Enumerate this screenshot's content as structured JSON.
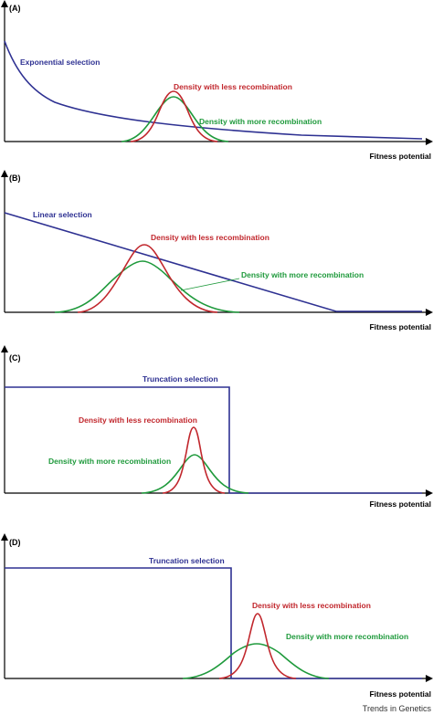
{
  "panels": [
    {
      "id": "A",
      "tag": "(A)",
      "selection_label": "Exponential selection",
      "less_label": "Density with less recombination",
      "more_label": "Density with more recombination",
      "x_label": "Fitness potential"
    },
    {
      "id": "B",
      "tag": "(B)",
      "selection_label": "Linear selection",
      "less_label": "Density with less recombination",
      "more_label": "Density with more recombination",
      "x_label": "Fitness potential"
    },
    {
      "id": "C",
      "tag": "(C)",
      "selection_label": "Truncation selection",
      "less_label": "Density with less recombination",
      "more_label": "Density with more recombination",
      "x_label": "Fitness potential"
    },
    {
      "id": "D",
      "tag": "(D)",
      "selection_label": "Truncation selection",
      "less_label": "Density with less recombination",
      "more_label": "Density with more recombination",
      "x_label": "Fitness potential"
    }
  ],
  "credit": "Trends in Genetics",
  "colors": {
    "selection": "#2e3192",
    "less_recombination": "#c1272d",
    "more_recombination": "#1f9a3c",
    "axis": "#000000"
  }
}
